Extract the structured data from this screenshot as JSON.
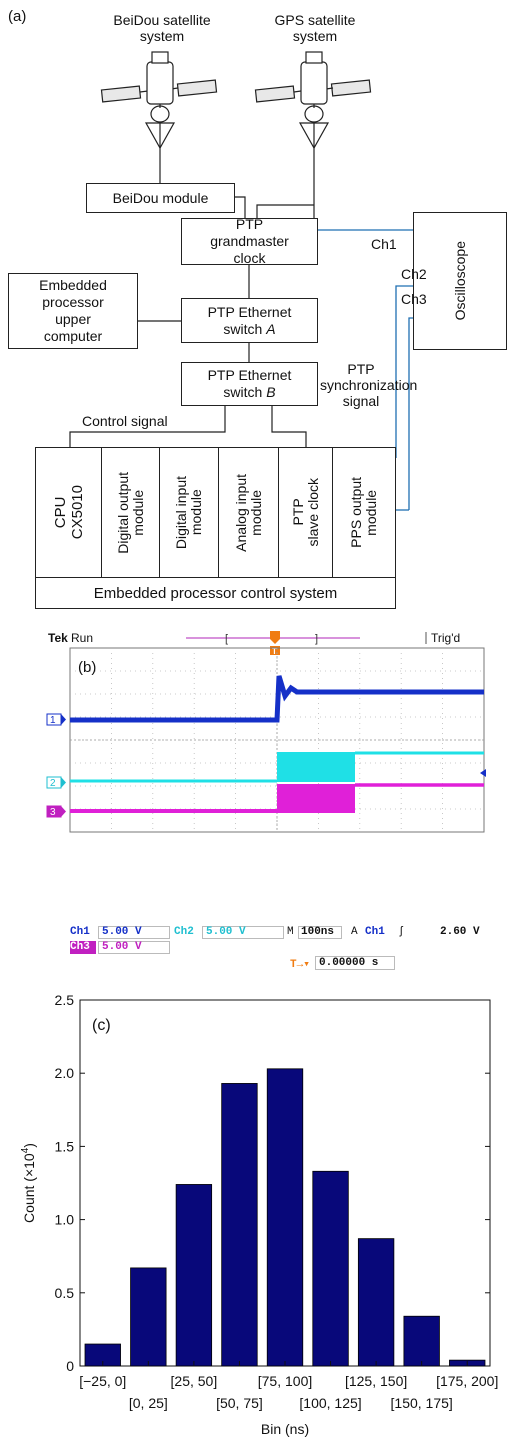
{
  "panel_a": {
    "label": "(a)",
    "sat_beidou": [
      "BeiDou satellite",
      "system"
    ],
    "sat_gps": [
      "GPS satellite",
      "system"
    ],
    "beidou_module": "BeiDou module",
    "grandmaster": [
      "PTP",
      "grandmaster",
      "clock"
    ],
    "embedded_upper": [
      "Embedded",
      "processor",
      "upper",
      "computer"
    ],
    "switch_a": [
      "PTP Ethernet",
      "switch ",
      "A"
    ],
    "switch_b": [
      "PTP Ethernet",
      "switch ",
      "B"
    ],
    "oscilloscope": "Oscilloscope",
    "ch1": "Ch1",
    "ch2": "Ch2",
    "ch3": "Ch3",
    "control_signal": "Control signal",
    "ptp_sync": [
      "PTP",
      "synchronization",
      "signal"
    ],
    "modules": [
      [
        "CPU",
        "CX5010"
      ],
      [
        "Digital output",
        "module"
      ],
      [
        "Digital input",
        "module"
      ],
      [
        "Analog input",
        "module"
      ],
      [
        "PTP",
        "slave clock"
      ],
      [
        "PPS output",
        "module"
      ]
    ],
    "control_system": "Embedded processor control system",
    "colors": {
      "line": "#222222",
      "blue_line": "#1f6fb2"
    }
  },
  "panel_b": {
    "label": "(b)",
    "tek": "Tek",
    "run": "Run",
    "trigd": "Trig'd",
    "trigger_marker": "T",
    "ch_markers": [
      "1",
      "2",
      "3"
    ],
    "status": {
      "ch1": "Ch1",
      "ch1_val": "5.00 V",
      "ch2": "Ch2",
      "ch2_val": "5.00 V",
      "m": "M",
      "time_div": "100ns",
      "a": "A",
      "trig_ch": "Ch1",
      "trig_slope": "ʃ",
      "trig_level": "2.60 V",
      "ch3": "Ch3",
      "ch3_val": "5.00 V",
      "offset_marker": "T→▾",
      "offset_value": "0.00000 s"
    },
    "colors": {
      "ch1": "#1530c8",
      "ch2": "#1fe0e6",
      "ch3": "#e020d8",
      "grid": "#999999",
      "trigger": "#f07c12"
    }
  },
  "chart_data": {
    "type": "bar",
    "label": "(c)",
    "categories": [
      "[−25, 0]",
      "[0, 25]",
      "[25, 50]",
      "[50, 75]",
      "[75, 100]",
      "[100, 125]",
      "[125, 150]",
      "[150, 175]",
      "[175, 200]"
    ],
    "values": [
      0.15,
      0.67,
      1.24,
      1.93,
      2.03,
      1.33,
      0.87,
      0.34,
      0.04
    ],
    "ylabel_main": "Count (×10",
    "ylabel_exp": "4",
    "ylabel_end": ")",
    "xlabel": "Bin (ns)",
    "ylim": [
      0,
      2.5
    ],
    "yticks": [
      "0",
      "0.5",
      "1.0",
      "1.5",
      "2.0",
      "2.5"
    ],
    "bar_color": "#08087a"
  }
}
